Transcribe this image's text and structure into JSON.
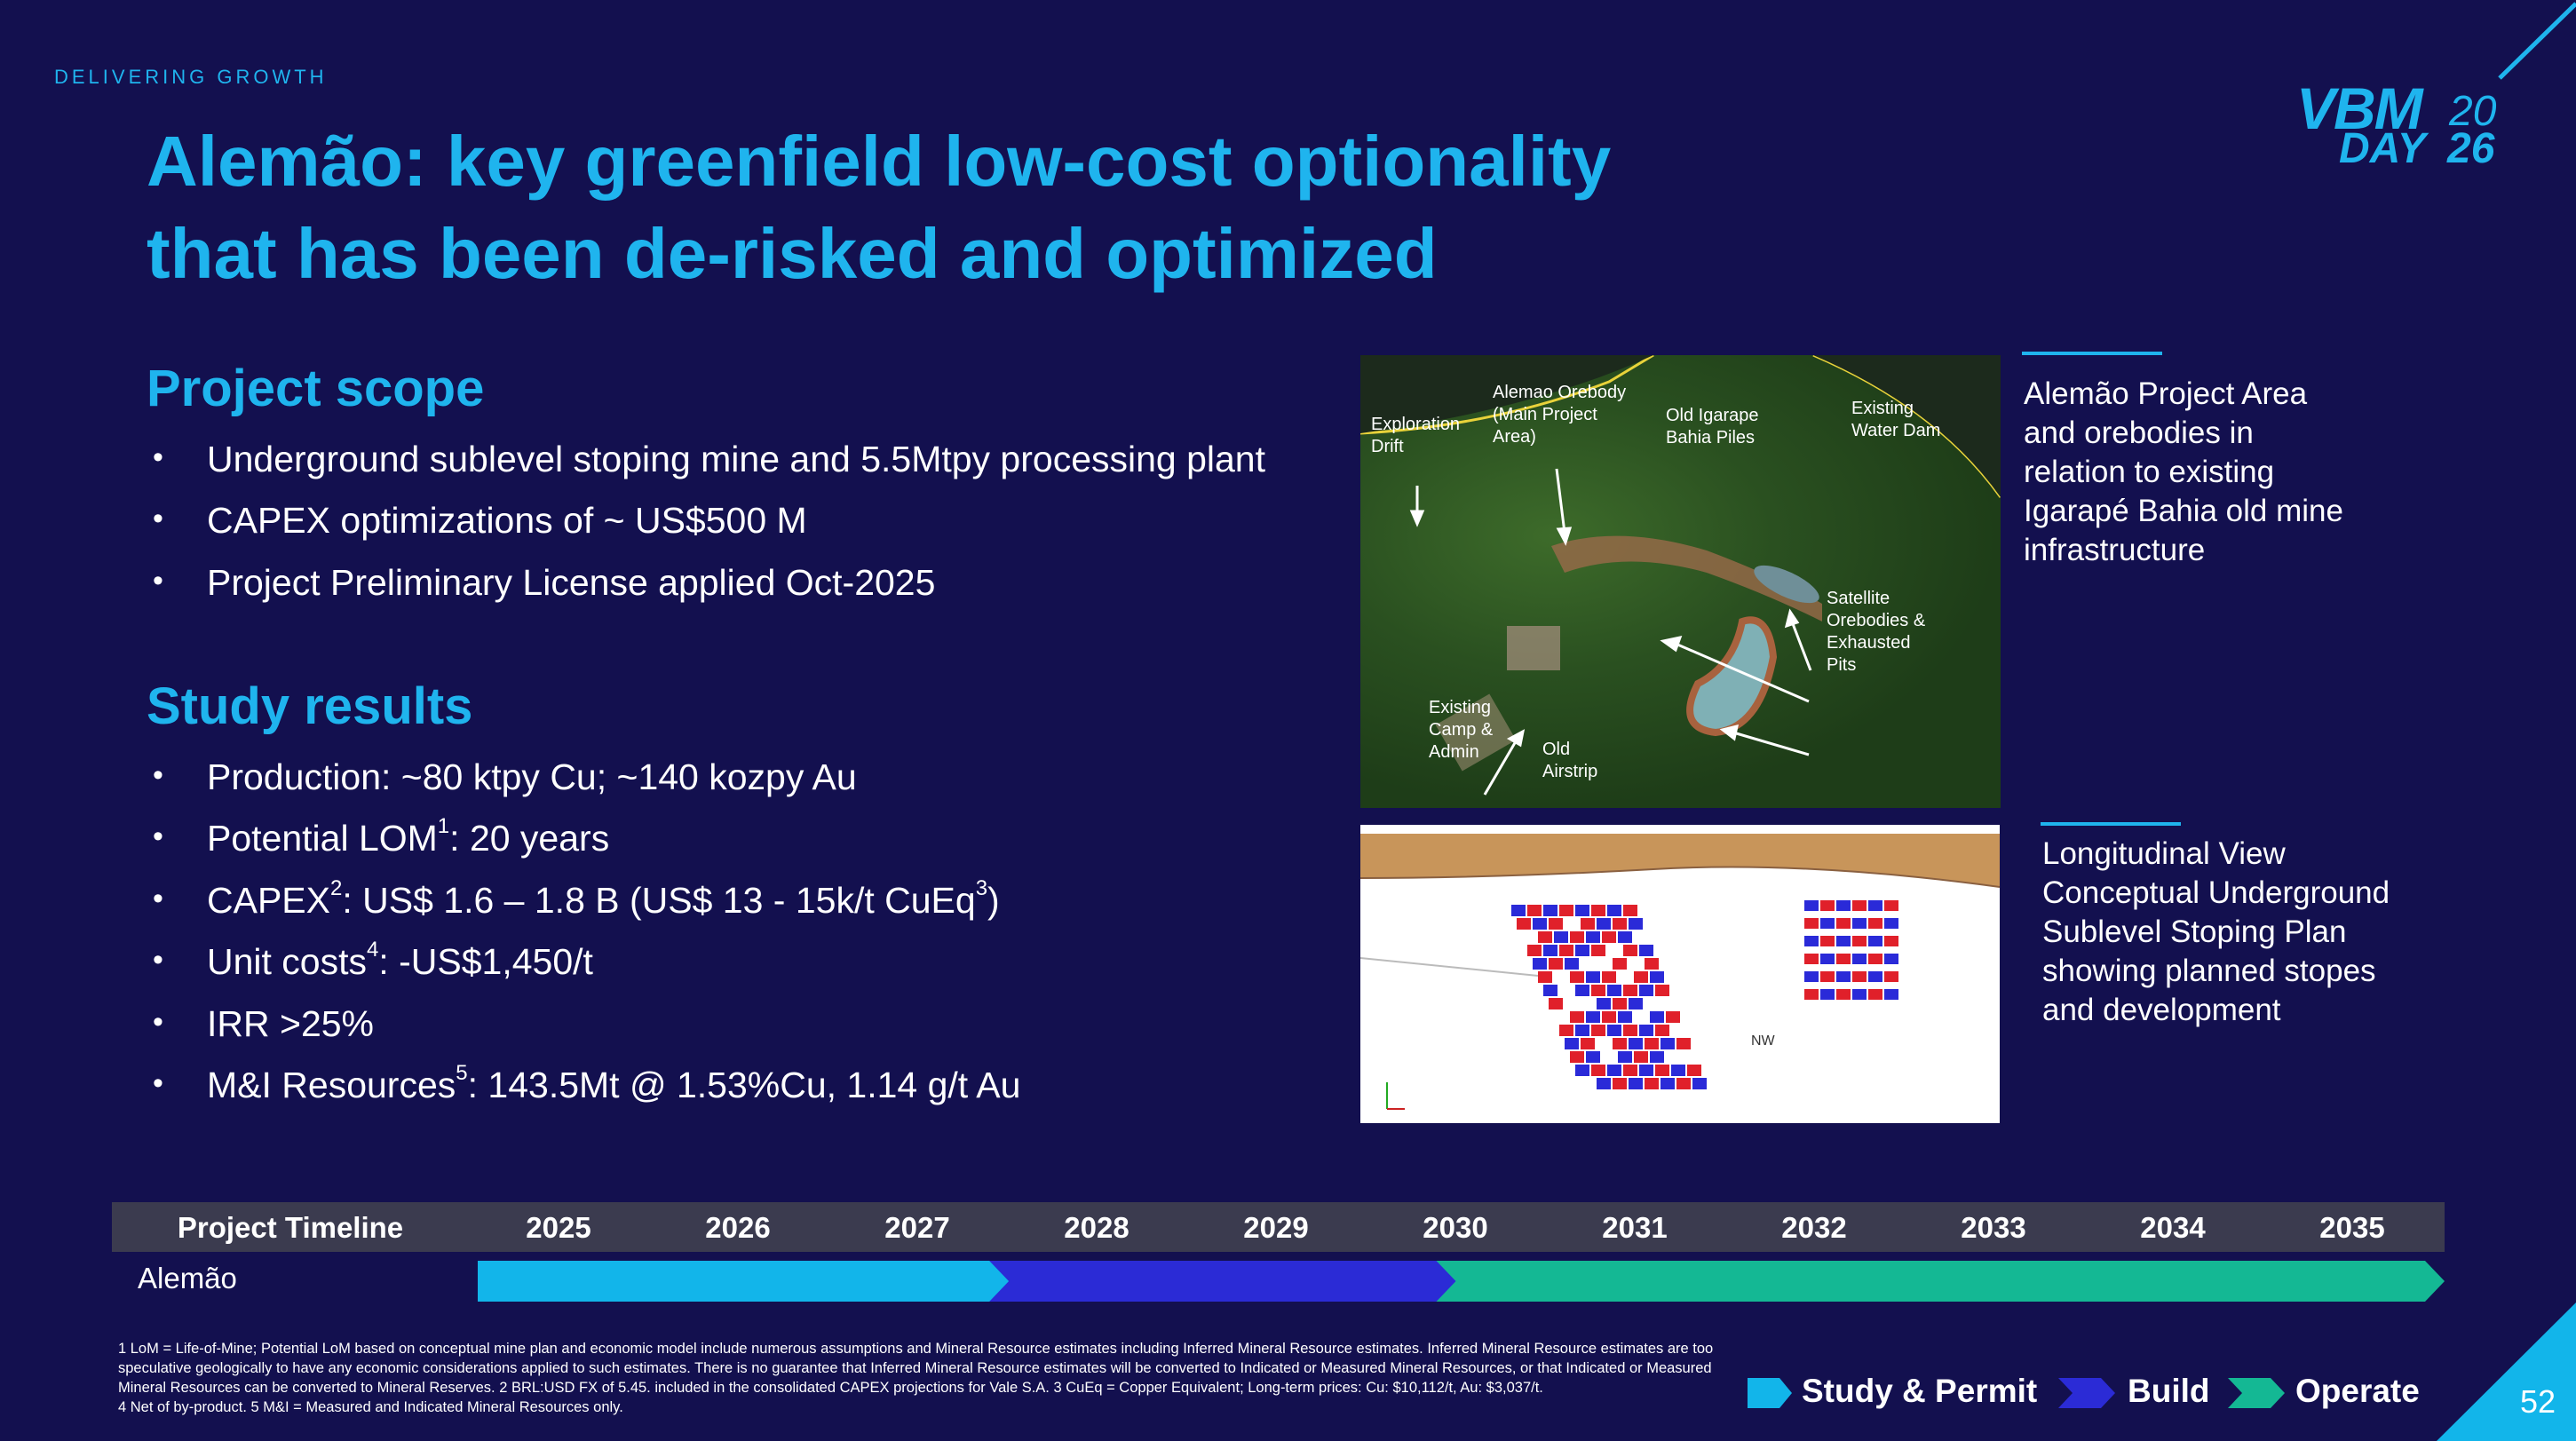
{
  "header": {
    "kicker": "DELIVERING GROWTH",
    "title_line1": "Alemão: key greenfield low-cost optionality",
    "title_line2": "that has been de-risked and optimized"
  },
  "logo": {
    "text_main": "VBM",
    "text_day": "DAY",
    "year_a": "20",
    "year_b": "26"
  },
  "project_scope": {
    "heading": "Project scope",
    "bullets": [
      "Underground sublevel stoping mine and 5.5Mtpy processing plant",
      "CAPEX optimizations of ~ US$500 M",
      "Project Preliminary License applied Oct-2025"
    ]
  },
  "study_results": {
    "heading": "Study results",
    "b1": "Production: ~80 ktpy Cu; ~140 kozpy Au",
    "b2_pre": "Potential LOM",
    "b2_sup": "1",
    "b2_post": ": 20 years",
    "b3_pre": "CAPEX",
    "b3_sup": "2",
    "b3_mid": ": US$ 1.6 – 1.8 B (US$ 13 - 15k/t CuEq",
    "b3_sup2": "3",
    "b3_post": ")",
    "b4_pre": "Unit costs",
    "b4_sup": "4",
    "b4_post": ": -US$1,450/t",
    "b5": "IRR >25%",
    "b6_pre": "M&I Resources",
    "b6_sup": "5",
    "b6_post": ": 143.5Mt @ 1.53%Cu, 1.14 g/t Au"
  },
  "aerial_map": {
    "labels": [
      "Exploration\nDrift",
      "Alemao Orebody\n(Main Project\nArea)",
      "Old Igarape\nBahia Piles",
      "Existing\nWater Dam",
      "Satellite\nOrebodies &\nExhausted\nPits",
      "Existing\nCamp &\nAdmin",
      "Old\nAirstrip"
    ],
    "caption": "Alemão Project Area and orebodies in relation to existing Igarapé Bahia old mine infrastructure"
  },
  "longitudinal": {
    "caption": "Longitudinal View Conceptual Underground Sublevel Stoping Plan showing planned stopes and development",
    "compass_label": "NW"
  },
  "timeline": {
    "header": "Project Timeline",
    "years": [
      "2025",
      "2026",
      "2027",
      "2028",
      "2029",
      "2030",
      "2031",
      "2032",
      "2033",
      "2034",
      "2035"
    ],
    "row_label": "Alemão",
    "phases": [
      {
        "name": "Study & Permit",
        "from": 2025,
        "to": 2028,
        "color": "#12b5ea"
      },
      {
        "name": "Build",
        "from": 2028,
        "to": 2030.5,
        "color": "#2b2bd6"
      },
      {
        "name": "Operate",
        "from": 2030.5,
        "to": 2035,
        "color": "#14b894"
      }
    ]
  },
  "legend": {
    "study": "Study & Permit",
    "build": "Build",
    "operate": "Operate"
  },
  "footnotes": [
    "1 LoM = Life-of-Mine; Potential LoM based on conceptual mine plan and economic model include numerous assumptions and Mineral Resource estimates including Inferred Mineral Resource estimates. Inferred Mineral Resource estimates are too speculative geologically to have any economic considerations applied to such estimates. There is no guarantee that Inferred Mineral Resource estimates will be converted to Indicated or Measured Mineral Resources, or that Indicated or Measured Mineral Resources can be converted to Mineral Reserves. 2 BRL:USD FX of 5.45. included in the consolidated CAPEX projections for Vale S.A. 3 CuEq = Copper Equivalent; Long-term prices: Cu: $10,112/t, Au: $3,037/t.",
    "4 Net of by-product. 5 M&I = Measured and Indicated Mineral Resources only."
  ],
  "page_number": "52",
  "colors": {
    "background": "#13104f",
    "accent": "#1fb4ee",
    "study": "#12b5ea",
    "build": "#2b2bd6",
    "operate": "#14b894"
  }
}
